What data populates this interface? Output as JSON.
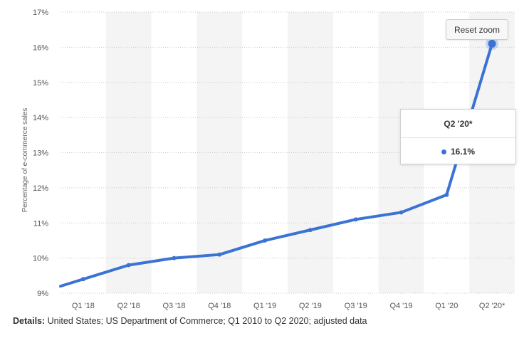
{
  "chart_data": {
    "type": "line",
    "categories": [
      "Q1 '18",
      "Q2 '18",
      "Q3 '18",
      "Q4 '18",
      "Q1 '19",
      "Q2 '19",
      "Q3 '19",
      "Q4 '19",
      "Q1 '20",
      "Q2 '20*"
    ],
    "series": [
      {
        "values": [
          9.4,
          9.8,
          10.0,
          10.1,
          10.5,
          10.8,
          11.1,
          11.3,
          11.8,
          16.1
        ]
      }
    ],
    "leading_value": 9.2,
    "ylabel": "Percentage of e-commerce sales",
    "ylim": [
      9,
      17
    ],
    "yticks": [
      "9%",
      "10%",
      "11%",
      "12%",
      "13%",
      "14%",
      "15%",
      "16%",
      "17%"
    ],
    "grid": true,
    "color": "#3a73d4"
  },
  "controls": {
    "reset_zoom_label": "Reset zoom"
  },
  "tooltip": {
    "title": "Q2 '20*",
    "value": "16.1%"
  },
  "details": {
    "label": "Details:",
    "text": "United States; US Department of Commerce; Q1 2010 to Q2 2020; adjusted data"
  }
}
